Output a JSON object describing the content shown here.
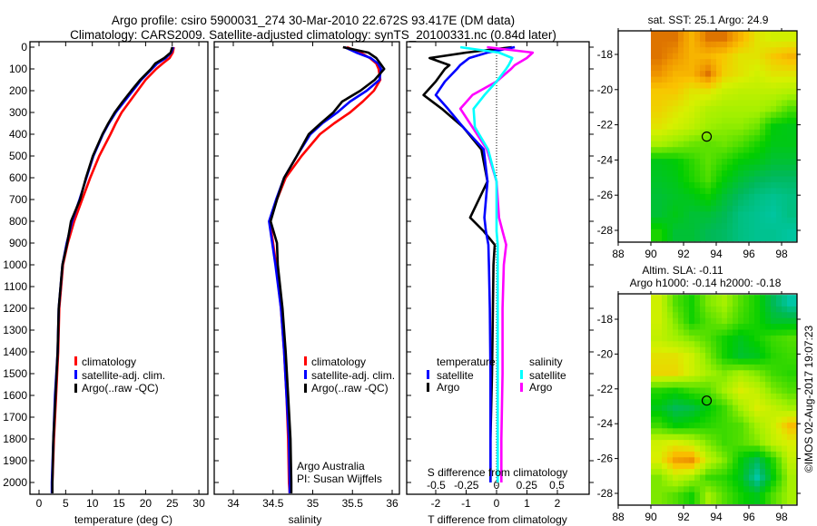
{
  "title": {
    "line1": "Argo profile: csiro 5900031_274 30-Mar-2010 22.672S 93.417E (DM data)",
    "line2": "Climatology: CARS2009. Satellite-adjusted climatology: synTS_20100331.nc (0.84d later)"
  },
  "legend_profiles": {
    "climatology": "climatology",
    "satellite": "satellite-adj. clim.",
    "argo": "Argo(..raw -QC)"
  },
  "legend_diff": {
    "temperature": "temperature",
    "salinity": "salinity",
    "satellite": "satellite",
    "argo": "Argo"
  },
  "credit": {
    "line1": "Argo Australia",
    "line2": "PI: Susan Wijffels"
  },
  "diff_top_label": "S difference from climatology",
  "maps": {
    "sst_title": "sat. SST: 25.1 Argo: 24.9",
    "sla_title1": "Altim. SLA: -0.11",
    "sla_title2": "Argo h1000: -0.14 h2000: -0.18"
  },
  "footer": "©IMOS 02-Aug-2017 19:07:23",
  "colors": {
    "climatology": "#ff0000",
    "satellite_t": "#0000ff",
    "argo_t": "#000000",
    "satellite_s": "#00ffff",
    "argo_s": "#ff00ff"
  },
  "chart_data": [
    {
      "type": "line",
      "name": "temperature-profile",
      "xlabel": "temperature (deg C)",
      "ylabel": "",
      "xticks": [
        0,
        5,
        10,
        15,
        20,
        25,
        30
      ],
      "yticks": [
        0,
        100,
        200,
        300,
        400,
        500,
        600,
        700,
        800,
        900,
        1000,
        1100,
        1200,
        1300,
        1400,
        1500,
        1600,
        1700,
        1800,
        1900,
        2000
      ],
      "ylim": [
        2080,
        -25
      ],
      "depth": [
        0,
        25,
        50,
        75,
        100,
        150,
        200,
        250,
        300,
        350,
        400,
        500,
        600,
        700,
        800,
        900,
        1000,
        1200,
        1400,
        1600,
        1800,
        2000,
        2050
      ],
      "series": [
        {
          "name": "climatology",
          "values": [
            25.3,
            25.1,
            24.5,
            23.2,
            22.0,
            20.0,
            18.5,
            17.0,
            15.5,
            14.4,
            13.4,
            11.3,
            9.6,
            8.1,
            6.6,
            5.4,
            4.5,
            3.8,
            3.6,
            3.2,
            2.8,
            2.5,
            2.5
          ]
        },
        {
          "name": "satellite-adj. clim.",
          "values": [
            25.2,
            24.8,
            23.8,
            22.2,
            21.2,
            19.2,
            17.6,
            16.0,
            14.4,
            13.1,
            12.0,
            10.2,
            8.9,
            7.6,
            6.2,
            5.2,
            4.4,
            3.7,
            3.5,
            3.0,
            2.7,
            2.4,
            2.4
          ]
        },
        {
          "name": "Argo(..raw -QC)",
          "values": [
            25.0,
            24.7,
            23.5,
            21.8,
            21.0,
            19.0,
            17.3,
            15.7,
            14.2,
            13.0,
            11.9,
            10.1,
            8.8,
            7.7,
            6.0,
            5.3,
            4.4,
            3.7,
            3.5,
            3.1,
            2.7,
            2.5,
            2.5
          ]
        }
      ]
    },
    {
      "type": "line",
      "name": "salinity-profile",
      "xlabel": "salinity",
      "xticks": [
        "34",
        "34.5",
        "35",
        "35.5",
        "36"
      ],
      "depth": [
        0,
        25,
        50,
        75,
        100,
        150,
        200,
        250,
        300,
        350,
        400,
        500,
        600,
        700,
        800,
        900,
        1000,
        1200,
        1400,
        1600,
        1800,
        2000,
        2050
      ],
      "series": [
        {
          "name": "climatology",
          "values": [
            35.43,
            35.6,
            35.72,
            35.8,
            35.83,
            35.85,
            35.77,
            35.63,
            35.47,
            35.27,
            35.09,
            34.86,
            34.66,
            34.55,
            34.46,
            34.5,
            34.54,
            34.6,
            34.64,
            34.67,
            34.69,
            34.7,
            34.71
          ]
        },
        {
          "name": "satellite-adj. clim.",
          "values": [
            35.4,
            35.55,
            35.73,
            35.82,
            35.86,
            35.84,
            35.68,
            35.47,
            35.31,
            35.12,
            34.97,
            34.8,
            34.64,
            34.54,
            34.45,
            34.49,
            34.53,
            34.6,
            34.64,
            34.67,
            34.7,
            34.71,
            34.71
          ]
        },
        {
          "name": "Argo(..raw -QC)",
          "values": [
            35.38,
            35.7,
            35.8,
            35.85,
            35.9,
            35.78,
            35.6,
            35.37,
            35.26,
            35.1,
            34.95,
            34.8,
            34.64,
            34.55,
            34.47,
            34.55,
            34.56,
            34.62,
            34.66,
            34.69,
            34.72,
            34.73,
            34.73
          ]
        }
      ]
    },
    {
      "type": "line",
      "name": "difference-profile",
      "xlabel": "T difference from climatology",
      "xticks": [
        "-2",
        "-1",
        "0",
        "1",
        "2"
      ],
      "s_xticks": [
        "-0.5",
        "-0.25",
        "0",
        "0.25",
        "0.5"
      ],
      "depth": [
        0,
        25,
        50,
        83,
        100,
        158,
        220,
        283,
        367,
        470,
        617,
        783,
        846,
        908,
        1000,
        1200,
        1500,
        1800,
        2000
      ],
      "series": [
        {
          "name": "temperature satellite",
          "values": [
            0.6,
            -0.3,
            -0.9,
            -1.2,
            -1.3,
            -1.7,
            -2.0,
            -1.6,
            -1.1,
            -0.42,
            -0.3,
            -0.4,
            -0.35,
            -0.27,
            -0.25,
            -0.22,
            -0.2,
            -0.2,
            -0.2
          ]
        },
        {
          "name": "temperature Argo",
          "values": [
            0.5,
            -1.0,
            -2.2,
            -1.55,
            -1.7,
            -2.0,
            -2.4,
            -1.8,
            -1.1,
            -0.5,
            -0.3,
            -0.87,
            -0.42,
            -0.06,
            -0.1,
            -0.12,
            -0.15,
            -0.2,
            -0.2
          ]
        },
        {
          "name": "salinity satellite",
          "values": [
            -0.3,
            0.02,
            0.13,
            0.1,
            0.08,
            0,
            -0.1,
            -0.19,
            -0.18,
            -0.07,
            0,
            0,
            0,
            0.01,
            0.01,
            0.01,
            0.01,
            0.01,
            0.01
          ]
        },
        {
          "name": "salinity Argo",
          "values": [
            -0.08,
            0.3,
            0.25,
            0.15,
            0.12,
            0,
            -0.2,
            -0.3,
            -0.2,
            -0.08,
            0,
            0.02,
            0.05,
            0.08,
            0.06,
            0.05,
            0.05,
            0.04,
            0.04
          ]
        }
      ]
    },
    {
      "type": "heatmap",
      "name": "sst-map",
      "xticks": [
        88,
        90,
        92,
        94,
        96,
        98
      ],
      "yticks": [
        -18,
        -20,
        -22,
        -24,
        -26,
        -28
      ],
      "lon_start": 90,
      "lat_start": -17,
      "range": [
        23,
        27.2
      ],
      "float_position": [
        93.417,
        -22.672
      ],
      "values": [
        [
          27,
          27,
          26.5,
          27,
          27,
          26.5,
          26,
          25.8,
          25.8
        ],
        [
          27,
          26.8,
          26.5,
          26.5,
          26.3,
          26,
          26,
          26.3,
          26.5
        ],
        [
          26.8,
          26.5,
          26.5,
          27,
          26.2,
          26,
          25.8,
          26,
          26
        ],
        [
          26.3,
          26.3,
          26.0,
          26,
          25.7,
          25.6,
          25.6,
          25.6,
          25.5
        ],
        [
          26.2,
          26,
          25.8,
          25.5,
          25.4,
          25.4,
          25.4,
          25.2,
          24.8
        ],
        [
          26,
          25.8,
          25.6,
          25.3,
          25.2,
          25.2,
          25.0,
          24.3,
          24.2
        ],
        [
          25.4,
          25.2,
          25,
          24.9,
          25,
          24.8,
          24.5,
          24.2,
          24.2
        ],
        [
          24.2,
          24.3,
          24.6,
          24.9,
          24.6,
          24.3,
          24.2,
          24,
          24
        ],
        [
          24.1,
          24.2,
          24.5,
          24.8,
          24.3,
          24,
          23.8,
          23.7,
          23.7
        ],
        [
          24,
          24.1,
          24.2,
          24.4,
          24,
          23.7,
          23.5,
          23.4,
          23.5
        ],
        [
          24,
          24.2,
          24,
          24,
          23.8,
          23.5,
          23.4,
          23.3,
          23.5
        ],
        [
          24.5,
          24,
          24,
          23.8,
          23.7,
          23.5,
          23.4,
          23.4,
          23.3
        ]
      ]
    },
    {
      "type": "heatmap",
      "name": "sla-map",
      "xticks": [
        88,
        90,
        92,
        94,
        96,
        98
      ],
      "yticks": [
        -18,
        -20,
        -22,
        -24,
        -26,
        -28
      ],
      "lon_start": 90,
      "lat_start": -17,
      "range": [
        -0.26,
        0.06
      ],
      "float_position": [
        93.417,
        -22.672
      ],
      "values": [
        [
          -0.05,
          -0.12,
          -0.15,
          -0.1,
          -0.08,
          -0.12,
          -0.15,
          -0.2,
          -0.24
        ],
        [
          -0.05,
          -0.1,
          -0.15,
          -0.12,
          -0.1,
          -0.13,
          -0.15,
          -0.18,
          -0.18
        ],
        [
          -0.06,
          -0.08,
          -0.1,
          -0.12,
          -0.15,
          -0.17,
          -0.15,
          -0.13,
          -0.12
        ],
        [
          -0.03,
          -0.03,
          -0.05,
          -0.1,
          -0.15,
          -0.18,
          -0.17,
          -0.14,
          -0.13
        ],
        [
          -0.02,
          -0.02,
          -0.05,
          -0.08,
          -0.1,
          -0.08,
          -0.1,
          -0.13,
          -0.14
        ],
        [
          -0.14,
          -0.15,
          -0.13,
          -0.12,
          -0.08,
          -0.04,
          -0.06,
          -0.1,
          -0.12
        ],
        [
          -0.17,
          -0.2,
          -0.19,
          -0.16,
          -0.13,
          -0.08,
          -0.04,
          -0.06,
          -0.08
        ],
        [
          -0.13,
          -0.16,
          -0.15,
          -0.14,
          -0.13,
          -0.12,
          -0.08,
          -0.05,
          0.0
        ],
        [
          -0.05,
          -0.04,
          -0.06,
          -0.1,
          -0.13,
          -0.12,
          -0.1,
          -0.06,
          -0.04
        ],
        [
          -0.04,
          0.02,
          0.03,
          -0.06,
          -0.1,
          -0.16,
          -0.2,
          -0.14,
          -0.06
        ],
        [
          -0.1,
          -0.06,
          -0.08,
          -0.13,
          -0.14,
          -0.17,
          -0.24,
          -0.16,
          -0.08
        ],
        [
          -0.1,
          -0.12,
          -0.15,
          -0.08,
          -0.12,
          -0.15,
          -0.17,
          -0.12,
          -0.08
        ]
      ]
    }
  ]
}
